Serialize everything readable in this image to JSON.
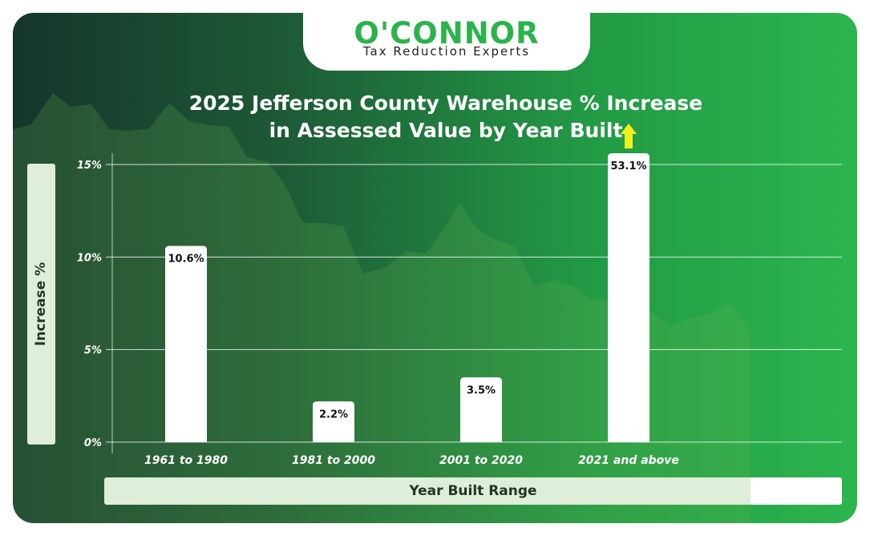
{
  "brand": {
    "name": "O'CONNOR",
    "tagline": "Tax Reduction Experts"
  },
  "chart_data": {
    "type": "bar",
    "title": "2025 Jefferson County Warehouse % Increase in Assessed Value by Year Built",
    "title_lines": [
      "2025 Jefferson County Warehouse % Increase",
      "in Assessed Value by Year Built"
    ],
    "xlabel": "Year Built Range",
    "ylabel": "Increase %",
    "categories": [
      "1961 to 1980",
      "1981 to 2000",
      "2001 to 2020",
      "2021 and above"
    ],
    "values": [
      10.6,
      2.2,
      3.5,
      53.1
    ],
    "value_labels": [
      "10.6%",
      "2.2%",
      "3.5%",
      "53.1%"
    ],
    "ylim": [
      0,
      15
    ],
    "yticks": [
      0,
      5,
      10,
      15
    ],
    "ytick_labels": [
      "0%",
      "5%",
      "10%",
      "15%"
    ],
    "grid": true,
    "clipped_bar_indicator": "up-arrow on bar exceeding axis max",
    "colors": {
      "bar": "#ffffff",
      "arrow": "#f2f21a",
      "brand_green": "#2bb34b",
      "background_dark": "#16352c",
      "background_light": "#2cb54e"
    }
  }
}
